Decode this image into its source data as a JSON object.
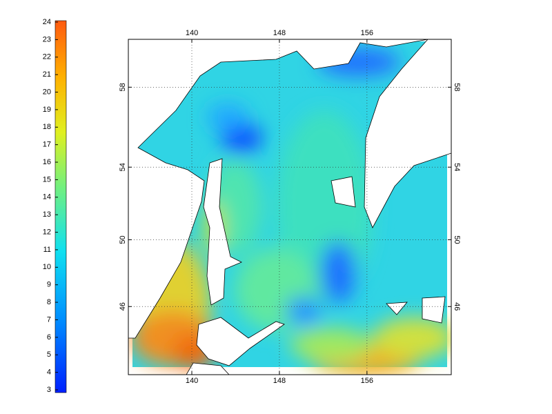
{
  "colorbar": {
    "range": [
      3,
      24
    ],
    "ticks": [
      3,
      4,
      5,
      6,
      7,
      8,
      9,
      10,
      11,
      12,
      13,
      14,
      15,
      16,
      17,
      18,
      19,
      20,
      21,
      22,
      23,
      24
    ]
  },
  "map": {
    "xlim": [
      134.2,
      163.7
    ],
    "ylim": [
      41.6,
      60.2
    ],
    "xticks": [
      140,
      148,
      156
    ],
    "yticks": [
      46,
      50,
      54,
      58
    ],
    "grid": true
  }
}
